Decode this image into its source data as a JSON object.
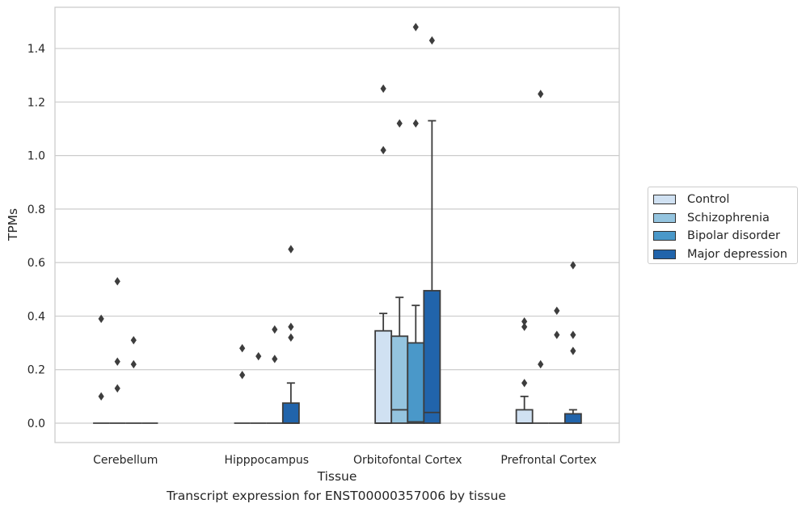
{
  "caption": "Transcript expression for ENST00000357006 by tissue",
  "chart_data": {
    "type": "box",
    "title": "",
    "xlabel": "Tissue",
    "ylabel": "TPMs",
    "ylim": [
      -0.07,
      1.56
    ],
    "yticks": [
      0.0,
      0.2,
      0.4,
      0.6,
      0.8,
      1.0,
      1.2,
      1.4
    ],
    "ytick_labels": [
      "0.0",
      "0.2",
      "0.4",
      "0.6",
      "0.8",
      "1.0",
      "1.2",
      "1.4"
    ],
    "grid": "horizontal",
    "legend_position": "right",
    "categories": [
      "Cerebellum",
      "Hipppocampus",
      "Orbitofontal Cortex",
      "Prefrontal Cortex"
    ],
    "series": [
      {
        "name": "Control",
        "color": "#d0e1f2",
        "boxes": [
          {
            "q1": 0,
            "median": 0,
            "q3": 0,
            "whisker_low": 0,
            "whisker_high": 0,
            "outliers": [
              0.1,
              0.39
            ]
          },
          {
            "q1": 0,
            "median": 0,
            "q3": 0,
            "whisker_low": 0,
            "whisker_high": 0,
            "outliers": [
              0.18,
              0.28
            ]
          },
          {
            "q1": 0,
            "median": 0,
            "q3": 0.345,
            "whisker_low": 0,
            "whisker_high": 0.41,
            "outliers": [
              1.02,
              1.25
            ]
          },
          {
            "q1": 0,
            "median": 0,
            "q3": 0.05,
            "whisker_low": 0,
            "whisker_high": 0.1,
            "outliers": [
              0.15,
              0.36,
              0.38
            ]
          }
        ]
      },
      {
        "name": "Schizophrenia",
        "color": "#94c4df",
        "boxes": [
          {
            "q1": 0,
            "median": 0,
            "q3": 0,
            "whisker_low": 0,
            "whisker_high": 0,
            "outliers": [
              0.13,
              0.23,
              0.53
            ]
          },
          {
            "q1": 0,
            "median": 0,
            "q3": 0,
            "whisker_low": 0,
            "whisker_high": 0,
            "outliers": [
              0.25
            ]
          },
          {
            "q1": 0,
            "median": 0.05,
            "q3": 0.325,
            "whisker_low": 0,
            "whisker_high": 0.47,
            "outliers": [
              1.12
            ]
          },
          {
            "q1": 0,
            "median": 0,
            "q3": 0,
            "whisker_low": 0,
            "whisker_high": 0,
            "outliers": [
              0.22,
              1.23
            ]
          }
        ]
      },
      {
        "name": "Bipolar disorder",
        "color": "#4a98c9",
        "boxes": [
          {
            "q1": 0,
            "median": 0,
            "q3": 0,
            "whisker_low": 0,
            "whisker_high": 0,
            "outliers": [
              0.22,
              0.31
            ]
          },
          {
            "q1": 0,
            "median": 0,
            "q3": 0,
            "whisker_low": 0,
            "whisker_high": 0,
            "outliers": [
              0.24,
              0.35
            ]
          },
          {
            "q1": 0,
            "median": 0.005,
            "q3": 0.3,
            "whisker_low": 0,
            "whisker_high": 0.44,
            "outliers": [
              1.12,
              1.48
            ]
          },
          {
            "q1": 0,
            "median": 0,
            "q3": 0,
            "whisker_low": 0,
            "whisker_high": 0,
            "outliers": [
              0.33,
              0.42
            ]
          }
        ]
      },
      {
        "name": "Major depression",
        "color": "#2164ab",
        "boxes": [
          {
            "q1": 0,
            "median": 0,
            "q3": 0,
            "whisker_low": 0,
            "whisker_high": 0,
            "outliers": []
          },
          {
            "q1": 0,
            "median": 0,
            "q3": 0.075,
            "whisker_low": 0,
            "whisker_high": 0.15,
            "outliers": [
              0.32,
              0.36,
              0.65
            ]
          },
          {
            "q1": 0,
            "median": 0.04,
            "q3": 0.495,
            "whisker_low": 0,
            "whisker_high": 1.13,
            "outliers": [
              1.43
            ]
          },
          {
            "q1": 0,
            "median": 0,
            "q3": 0.035,
            "whisker_low": 0,
            "whisker_high": 0.05,
            "outliers": [
              0.27,
              0.33,
              0.59
            ]
          }
        ]
      }
    ]
  }
}
